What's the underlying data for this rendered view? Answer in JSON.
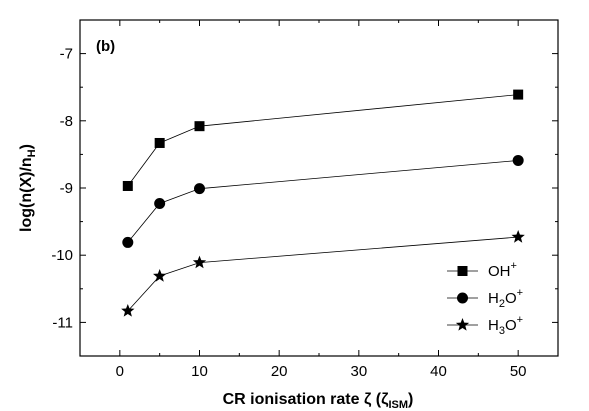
{
  "chart_data": {
    "type": "line",
    "panel_label": "(b)",
    "xlabel": "CR ionisation rate ζ  (ζ",
    "xlabel_sub": "ISM",
    "xlabel_end": ")",
    "ylabel": "log(n(X)/n",
    "ylabel_sub": "H",
    "ylabel_end": ")",
    "xlim": [
      -5,
      55
    ],
    "ylim": [
      -11.5,
      -6.5
    ],
    "xticks": [
      0,
      10,
      20,
      30,
      40,
      50
    ],
    "yticks": [
      -7,
      -8,
      -9,
      -10,
      -11
    ],
    "x": [
      1,
      5,
      10,
      50
    ],
    "series": [
      {
        "name": "OH",
        "sub": "",
        "sup": "+",
        "marker": "square",
        "values": [
          -8.97,
          -8.33,
          -8.08,
          -7.61
        ]
      },
      {
        "name": "H",
        "sub": "2",
        "post": "O",
        "sup": "+",
        "marker": "circle",
        "values": [
          -9.81,
          -9.23,
          -9.01,
          -8.59
        ]
      },
      {
        "name": "H",
        "sub": "3",
        "post": "O",
        "sup": "+",
        "marker": "star",
        "values": [
          -10.83,
          -10.31,
          -10.11,
          -9.73
        ]
      }
    ],
    "legend_position": "bottom-right",
    "grid": false
  }
}
